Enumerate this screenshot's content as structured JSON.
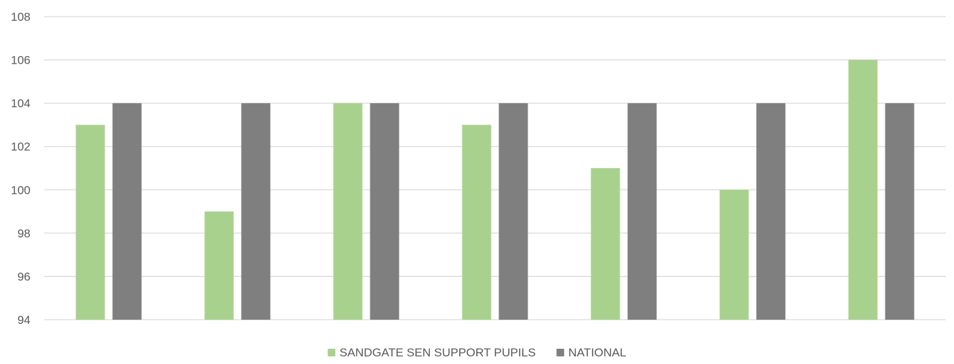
{
  "chart_data": {
    "type": "bar",
    "categories": [
      "",
      "",
      "",
      "",
      "",
      "",
      ""
    ],
    "series": [
      {
        "name": "SANDGATE SEN SUPPORT PUPILS",
        "color": "#a9d18e",
        "values": [
          103,
          99,
          104,
          103,
          101,
          100,
          106
        ]
      },
      {
        "name": "NATIONAL",
        "color": "#7f7f7f",
        "values": [
          104,
          104,
          104,
          104,
          104,
          104,
          104
        ]
      }
    ],
    "y_ticks": [
      "94",
      "96",
      "98",
      "100",
      "102",
      "104",
      "106",
      "108"
    ],
    "ylim": [
      94,
      108
    ],
    "grid": true,
    "legend_position": "bottom"
  }
}
